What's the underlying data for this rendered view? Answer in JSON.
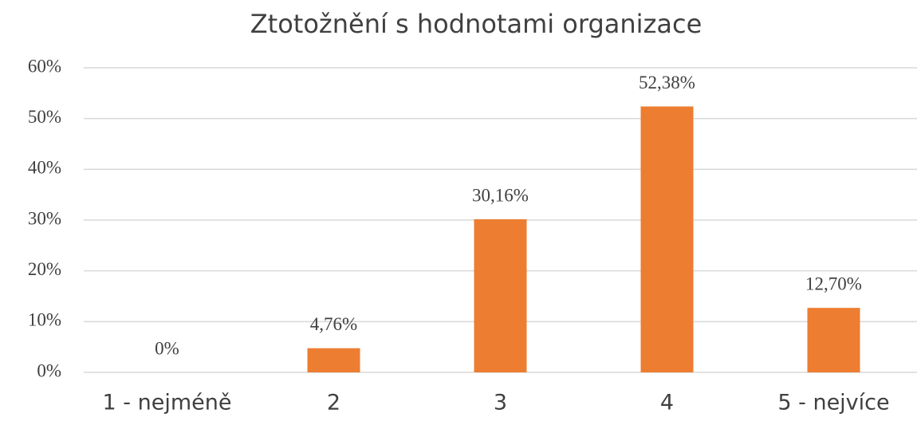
{
  "chart_data": {
    "type": "bar",
    "title": "Ztotožnění s hodnotami organizace",
    "categories": [
      "1 - nejméně",
      "2",
      "3",
      "4",
      "5 - nejvíce"
    ],
    "values": [
      0,
      4.76,
      30.16,
      52.38,
      12.7
    ],
    "value_labels": [
      "0%",
      "4,76%",
      "30,16%",
      "52,38%",
      "12,70%"
    ],
    "color": "#ed7d31",
    "ylim": [
      0,
      60
    ],
    "yticks": [
      {
        "value": 0,
        "label": "0%"
      },
      {
        "value": 10,
        "label": "10%"
      },
      {
        "value": 20,
        "label": "20%"
      },
      {
        "value": 30,
        "label": "30%"
      },
      {
        "value": 40,
        "label": "40%"
      },
      {
        "value": 50,
        "label": "50%"
      },
      {
        "value": 60,
        "label": "60%"
      }
    ],
    "grid": true
  }
}
